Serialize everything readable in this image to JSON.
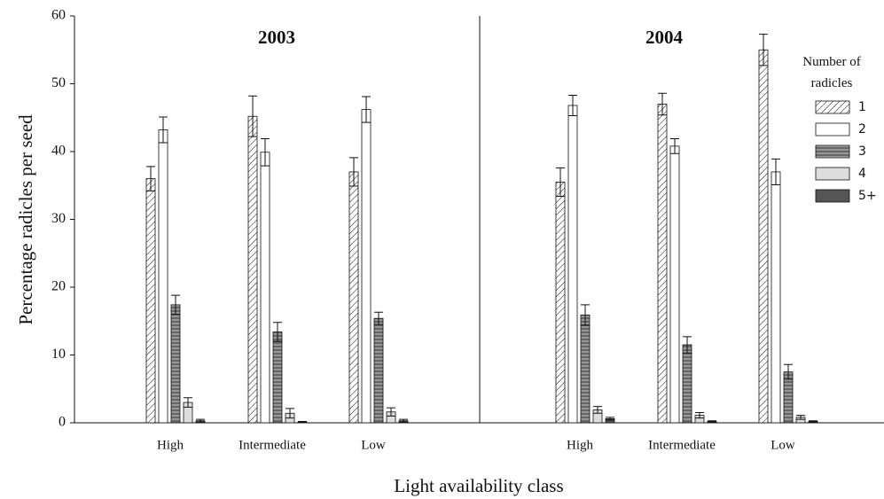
{
  "chart_data": [
    {
      "type": "bar",
      "title": "2003",
      "y_label": "Percentage radicles per seed",
      "x_label": "Light availability class",
      "categories": [
        "High",
        "Intermediate",
        "Low"
      ],
      "ylim": [
        0,
        60
      ],
      "yticks": [
        0,
        10,
        20,
        30,
        40,
        50,
        60
      ],
      "series": [
        {
          "color": "#ffffff",
          "pattern": "diagonal",
          "values": [
            36,
            45.2,
            37
          ],
          "errors": [
            1.8,
            3,
            2.1
          ]
        },
        {
          "color": "#ffffff",
          "values": [
            43.2,
            39.9,
            46.2
          ],
          "errors": [
            1.9,
            2,
            1.9
          ]
        },
        {
          "color": "#666666",
          "pattern": "horizontal",
          "values": [
            17.4,
            13.4,
            15.4
          ],
          "errors": [
            1.4,
            1.4,
            0.9
          ]
        },
        {
          "color": "#dddddd",
          "values": [
            3,
            1.4,
            1.6
          ],
          "errors": [
            0.7,
            0.7,
            0.6
          ]
        },
        {
          "color": "#555555",
          "values": [
            0.3,
            0.1,
            0.3
          ],
          "errors": [
            0.2,
            0.1,
            0.2
          ]
        }
      ]
    },
    {
      "type": "bar",
      "title": "2004",
      "legend_title": "Number of radicles",
      "legend": "upper right",
      "categories": [
        "High",
        "Intermediate",
        "Low"
      ],
      "ylim": [
        0,
        60
      ],
      "series": [
        {
          "name": "1",
          "color": "#ffffff",
          "pattern": "diagonal",
          "values": [
            35.5,
            47,
            55
          ],
          "errors": [
            2.1,
            1.6,
            2.3
          ]
        },
        {
          "name": "2",
          "color": "#ffffff",
          "values": [
            46.8,
            40.8,
            37
          ],
          "errors": [
            1.5,
            1.1,
            1.9
          ]
        },
        {
          "name": "3",
          "color": "#666666",
          "pattern": "horizontal",
          "values": [
            15.9,
            11.5,
            7.5
          ],
          "errors": [
            1.5,
            1.2,
            1.1
          ]
        },
        {
          "name": "4",
          "color": "#dddddd",
          "values": [
            1.9,
            1.1,
            0.8
          ],
          "errors": [
            0.5,
            0.4,
            0.3
          ]
        },
        {
          "name": "5+",
          "color": "#555555",
          "values": [
            0.6,
            0.2,
            0.2
          ],
          "errors": [
            0.2,
            0.1,
            0.1
          ]
        }
      ]
    }
  ]
}
